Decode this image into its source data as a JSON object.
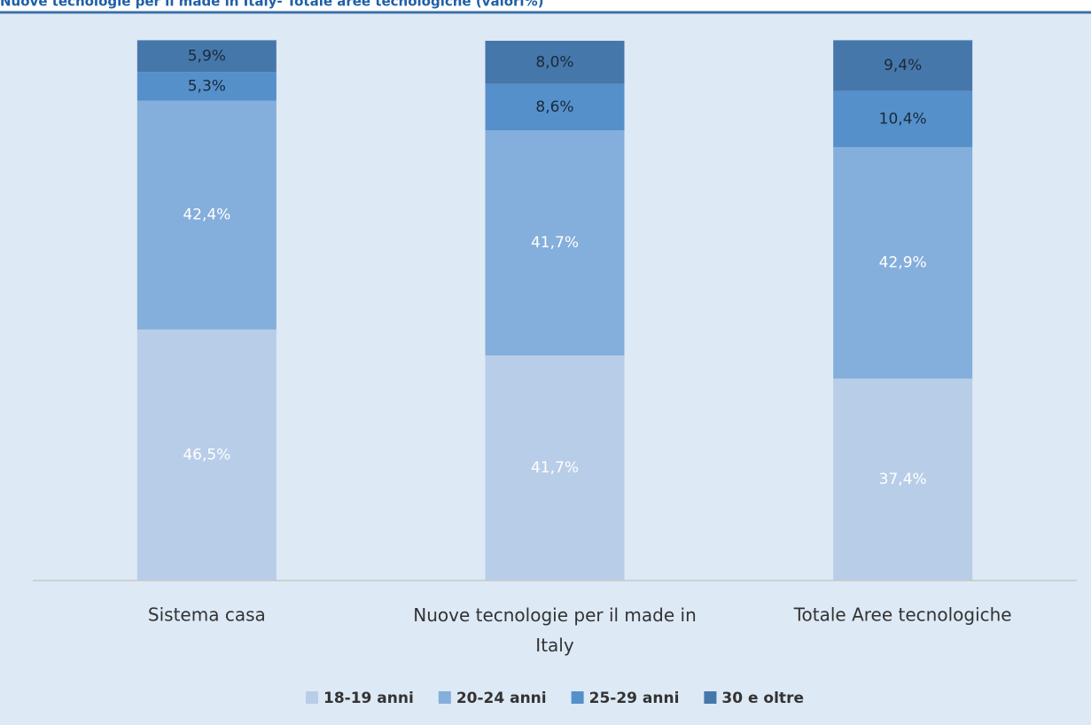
{
  "chart_data": {
    "type": "stacked_bar",
    "title": "Nuove tecnologie per il made in Italy- Totale aree tecnologiche (valori%)",
    "categories": [
      "Sistema casa",
      "Nuove tecnologie per il made in Italy",
      "Totale Aree tecnologiche"
    ],
    "series": [
      {
        "name": "18-19 anni",
        "color": "#b8cde8",
        "values": [
          46.5,
          41.7,
          37.4
        ],
        "value_labels": [
          "46,5%",
          "41,7%",
          "37,4%"
        ]
      },
      {
        "name": "20-24 anni",
        "color": "#84aedb",
        "values": [
          42.4,
          41.7,
          42.9
        ],
        "value_labels": [
          "42,4%",
          "41,7%",
          "42,9%"
        ]
      },
      {
        "name": "25-29 anni",
        "color": "#5590cb",
        "values": [
          5.3,
          8.6,
          10.4
        ],
        "value_labels": [
          "5,3%",
          "8,6%",
          "10,4%"
        ]
      },
      {
        "name": "30 e oltre",
        "color": "#4677aa",
        "values": [
          5.9,
          8.0,
          9.4
        ],
        "value_labels": [
          "5,9%",
          "8,0%",
          "9,4%"
        ]
      }
    ],
    "ylim": [
      0,
      100
    ],
    "legend": "bottom"
  }
}
